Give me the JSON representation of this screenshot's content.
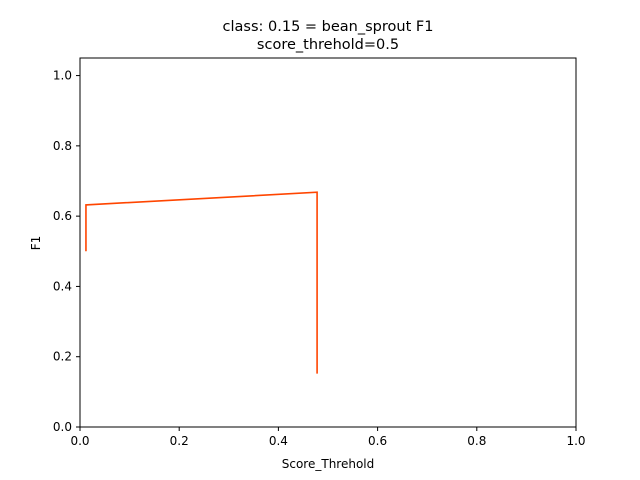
{
  "chart_data": {
    "type": "line",
    "title": "class: 0.15 = bean_sprout F1",
    "subtitle": "score_threhold=0.5",
    "xlabel": "Score_Threhold",
    "ylabel": "F1",
    "xlim": [
      0.0,
      1.0
    ],
    "ylim": [
      0.0,
      1.05
    ],
    "x_ticks": [
      "0.0",
      "0.2",
      "0.4",
      "0.6",
      "0.8",
      "1.0"
    ],
    "y_ticks": [
      "0.0",
      "0.2",
      "0.4",
      "0.6",
      "0.8",
      "1.0"
    ],
    "grid": false,
    "legend": "none",
    "series": [
      {
        "color": "#ff4500",
        "x": [
          0.012,
          0.012,
          0.478,
          0.478
        ],
        "y": [
          0.5,
          0.632,
          0.668,
          0.152
        ]
      }
    ]
  }
}
